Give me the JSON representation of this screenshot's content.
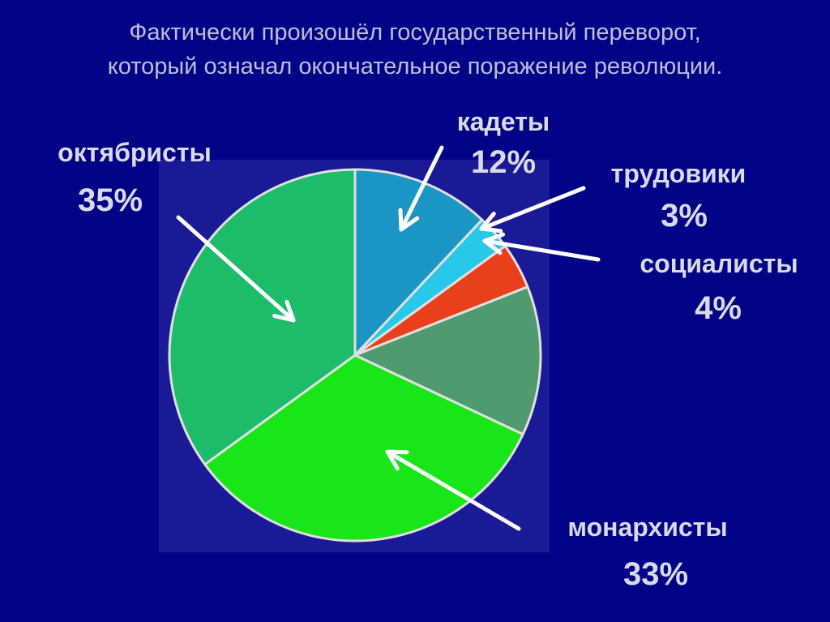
{
  "slide": {
    "background": "#030387",
    "title_line1": "Фактически произошёл государственный переворот,",
    "title_line2": "который означал окончательное поражение революции."
  },
  "chart_data": {
    "type": "pie",
    "title": "",
    "start_angle_deg": 0,
    "direction": "clockwise",
    "slices": [
      {
        "label": "кадеты",
        "value": 12,
        "display": "12%",
        "color": "#1b96c4"
      },
      {
        "label": "трудовики",
        "value": 3,
        "display": "3%",
        "color": "#27c8e8"
      },
      {
        "label": "социалисты",
        "value": 4,
        "display": "4%",
        "color": "#e8401c"
      },
      {
        "label": "",
        "value": 13,
        "display": "",
        "color": "#4f9a6e"
      },
      {
        "label": "монархисты",
        "value": 33,
        "display": "33%",
        "color": "#18e618"
      },
      {
        "label": "октябристы",
        "value": 35,
        "display": "35%",
        "color": "#1cbc6a"
      }
    ],
    "plot_background": "#1a1a96",
    "edge_color": "#e0e0e0"
  }
}
